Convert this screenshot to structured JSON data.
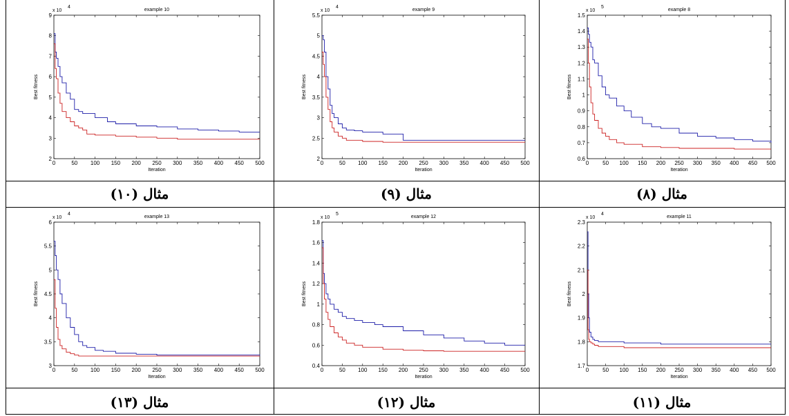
{
  "chart_data": [
    {
      "type": "line",
      "title": "example 10",
      "xlabel": "Iteration",
      "ylabel": "Best fitness",
      "exponent": "x 10",
      "exponent_power": "4",
      "xlim": [
        0,
        500
      ],
      "ylim": [
        2,
        9
      ],
      "xticks": [
        0,
        50,
        100,
        150,
        200,
        250,
        300,
        350,
        400,
        450,
        500
      ],
      "yticks": [
        2,
        3,
        4,
        5,
        6,
        7,
        8,
        9
      ],
      "caption": "مثال (۱۰)",
      "series": [
        {
          "color": "#1c1ca8",
          "x": [
            0,
            3,
            6,
            10,
            15,
            20,
            30,
            40,
            50,
            60,
            70,
            80,
            100,
            130,
            150,
            170,
            200,
            250,
            300,
            350,
            400,
            450,
            500
          ],
          "y": [
            8.1,
            7.2,
            6.9,
            6.5,
            6.0,
            5.7,
            5.2,
            4.9,
            4.4,
            4.3,
            4.2,
            4.2,
            4.0,
            3.8,
            3.7,
            3.7,
            3.6,
            3.55,
            3.45,
            3.4,
            3.35,
            3.3,
            3.3
          ]
        },
        {
          "color": "#cc2020",
          "x": [
            0,
            3,
            6,
            10,
            15,
            20,
            30,
            40,
            50,
            60,
            70,
            80,
            100,
            150,
            200,
            250,
            300,
            350,
            400,
            450,
            500
          ],
          "y": [
            7.6,
            6.4,
            5.9,
            5.2,
            4.7,
            4.3,
            4.0,
            3.8,
            3.6,
            3.5,
            3.4,
            3.2,
            3.15,
            3.1,
            3.05,
            3.0,
            2.95,
            2.95,
            2.95,
            2.95,
            2.95
          ]
        }
      ]
    },
    {
      "type": "line",
      "title": "example 9",
      "xlabel": "Iteration",
      "ylabel": "Best fitness",
      "exponent": "x 10",
      "exponent_power": "4",
      "xlim": [
        0,
        500
      ],
      "ylim": [
        2,
        5.5
      ],
      "xticks": [
        0,
        50,
        100,
        150,
        200,
        250,
        300,
        350,
        400,
        450,
        500
      ],
      "yticks": [
        2,
        2.5,
        3,
        3.5,
        4,
        4.5,
        5,
        5.5
      ],
      "caption": "مثال (۹)",
      "series": [
        {
          "color": "#1c1ca8",
          "x": [
            0,
            3,
            6,
            10,
            15,
            20,
            25,
            30,
            40,
            50,
            60,
            80,
            100,
            150,
            200,
            250,
            300,
            400,
            500
          ],
          "y": [
            5.0,
            4.9,
            4.6,
            4.0,
            3.7,
            3.3,
            3.1,
            3.0,
            2.85,
            2.75,
            2.7,
            2.68,
            2.65,
            2.6,
            2.45,
            2.45,
            2.45,
            2.45,
            2.45
          ]
        },
        {
          "color": "#cc2020",
          "x": [
            0,
            3,
            6,
            10,
            15,
            20,
            25,
            30,
            40,
            50,
            60,
            80,
            100,
            150,
            200,
            300,
            400,
            500
          ],
          "y": [
            4.6,
            4.3,
            4.0,
            3.5,
            3.2,
            2.9,
            2.75,
            2.65,
            2.55,
            2.5,
            2.45,
            2.45,
            2.42,
            2.4,
            2.4,
            2.4,
            2.4,
            2.4
          ]
        }
      ]
    },
    {
      "type": "line",
      "title": "example 8",
      "xlabel": "Iteration",
      "ylabel": "Best fitness",
      "exponent": "x 10",
      "exponent_power": "5",
      "xlim": [
        0,
        500
      ],
      "ylim": [
        0.6,
        1.5
      ],
      "xticks": [
        0,
        50,
        100,
        150,
        200,
        250,
        300,
        350,
        400,
        450,
        500
      ],
      "yticks": [
        0.6,
        0.7,
        0.8,
        0.9,
        1,
        1.1,
        1.2,
        1.3,
        1.4,
        1.5
      ],
      "caption": "مثال (۸)",
      "series": [
        {
          "color": "#1c1ca8",
          "x": [
            0,
            3,
            6,
            10,
            15,
            20,
            30,
            40,
            50,
            60,
            80,
            100,
            120,
            150,
            175,
            200,
            250,
            300,
            350,
            400,
            450,
            500
          ],
          "y": [
            1.42,
            1.38,
            1.33,
            1.3,
            1.22,
            1.2,
            1.12,
            1.05,
            1.0,
            0.98,
            0.93,
            0.9,
            0.86,
            0.82,
            0.8,
            0.79,
            0.76,
            0.74,
            0.73,
            0.72,
            0.71,
            0.7
          ]
        },
        {
          "color": "#cc2020",
          "x": [
            0,
            3,
            6,
            10,
            15,
            20,
            30,
            40,
            50,
            60,
            80,
            100,
            150,
            200,
            250,
            300,
            400,
            500
          ],
          "y": [
            1.35,
            1.2,
            1.05,
            0.95,
            0.88,
            0.84,
            0.79,
            0.76,
            0.74,
            0.72,
            0.7,
            0.69,
            0.675,
            0.67,
            0.665,
            0.665,
            0.66,
            0.66
          ]
        }
      ]
    },
    {
      "type": "line",
      "title": "example 13",
      "xlabel": "Iteration",
      "ylabel": "Best fitness",
      "exponent": "x 10",
      "exponent_power": "4",
      "xlim": [
        0,
        500
      ],
      "ylim": [
        3,
        6
      ],
      "xticks": [
        0,
        50,
        100,
        150,
        200,
        250,
        300,
        350,
        400,
        450,
        500
      ],
      "yticks": [
        3,
        3.5,
        4,
        4.5,
        5,
        5.5,
        6
      ],
      "caption": "مثال (۱۳)",
      "series": [
        {
          "color": "#1c1ca8",
          "x": [
            0,
            3,
            6,
            10,
            15,
            20,
            30,
            40,
            50,
            60,
            70,
            80,
            100,
            120,
            150,
            200,
            250,
            300,
            400,
            500
          ],
          "y": [
            5.6,
            5.3,
            5.0,
            4.8,
            4.5,
            4.3,
            4.0,
            3.8,
            3.65,
            3.5,
            3.42,
            3.38,
            3.32,
            3.3,
            3.26,
            3.24,
            3.22,
            3.22,
            3.22,
            3.21
          ]
        },
        {
          "color": "#cc2020",
          "x": [
            0,
            3,
            6,
            10,
            15,
            20,
            30,
            40,
            50,
            60,
            80,
            100,
            150,
            200,
            300,
            400,
            500
          ],
          "y": [
            4.8,
            4.2,
            3.8,
            3.55,
            3.42,
            3.35,
            3.28,
            3.25,
            3.22,
            3.2,
            3.2,
            3.2,
            3.2,
            3.2,
            3.2,
            3.2,
            3.2
          ]
        }
      ]
    },
    {
      "type": "line",
      "title": "example 12",
      "xlabel": "Iteration",
      "ylabel": "Best fitness",
      "exponent": "x 10",
      "exponent_power": "5",
      "xlim": [
        0,
        500
      ],
      "ylim": [
        0.4,
        1.8
      ],
      "xticks": [
        0,
        50,
        100,
        150,
        200,
        250,
        300,
        350,
        400,
        450,
        500
      ],
      "yticks": [
        0.4,
        0.6,
        0.8,
        1,
        1.2,
        1.4,
        1.6,
        1.8
      ],
      "caption": "مثال (۱۲)",
      "series": [
        {
          "color": "#1c1ca8",
          "x": [
            0,
            3,
            6,
            10,
            15,
            20,
            30,
            40,
            50,
            60,
            80,
            100,
            130,
            150,
            200,
            250,
            300,
            350,
            400,
            450,
            500
          ],
          "y": [
            1.62,
            1.3,
            1.2,
            1.1,
            1.05,
            1.0,
            0.95,
            0.92,
            0.88,
            0.86,
            0.84,
            0.82,
            0.8,
            0.78,
            0.74,
            0.7,
            0.67,
            0.64,
            0.62,
            0.6,
            0.6
          ]
        },
        {
          "color": "#cc2020",
          "x": [
            0,
            3,
            6,
            10,
            15,
            20,
            30,
            40,
            50,
            60,
            80,
            100,
            150,
            200,
            250,
            300,
            400,
            500
          ],
          "y": [
            1.55,
            1.2,
            1.05,
            0.92,
            0.85,
            0.78,
            0.72,
            0.68,
            0.65,
            0.62,
            0.6,
            0.58,
            0.56,
            0.55,
            0.545,
            0.54,
            0.54,
            0.54
          ]
        }
      ]
    },
    {
      "type": "line",
      "title": "example 11",
      "xlabel": "Iteration",
      "ylabel": "Best fitness",
      "exponent": "x 10",
      "exponent_power": "4",
      "xlim": [
        0,
        500
      ],
      "ylim": [
        1.7,
        2.3
      ],
      "xticks": [
        0,
        50,
        100,
        150,
        200,
        250,
        300,
        350,
        400,
        450,
        500
      ],
      "yticks": [
        1.7,
        1.8,
        1.9,
        2,
        2.1,
        2.2,
        2.3
      ],
      "caption": "مثال (۱۱)",
      "series": [
        {
          "color": "#1c1ca8",
          "x": [
            0,
            2,
            4,
            6,
            10,
            15,
            20,
            30,
            50,
            100,
            150,
            200,
            300,
            400,
            500
          ],
          "y": [
            2.26,
            2.0,
            1.9,
            1.84,
            1.82,
            1.81,
            1.805,
            1.8,
            1.8,
            1.795,
            1.795,
            1.79,
            1.79,
            1.79,
            1.79
          ]
        },
        {
          "color": "#cc2020",
          "x": [
            0,
            2,
            4,
            6,
            10,
            15,
            20,
            30,
            50,
            100,
            150,
            200,
            300,
            400,
            500
          ],
          "y": [
            2.1,
            1.85,
            1.81,
            1.8,
            1.795,
            1.79,
            1.785,
            1.78,
            1.78,
            1.775,
            1.775,
            1.775,
            1.775,
            1.775,
            1.775
          ]
        }
      ]
    }
  ]
}
